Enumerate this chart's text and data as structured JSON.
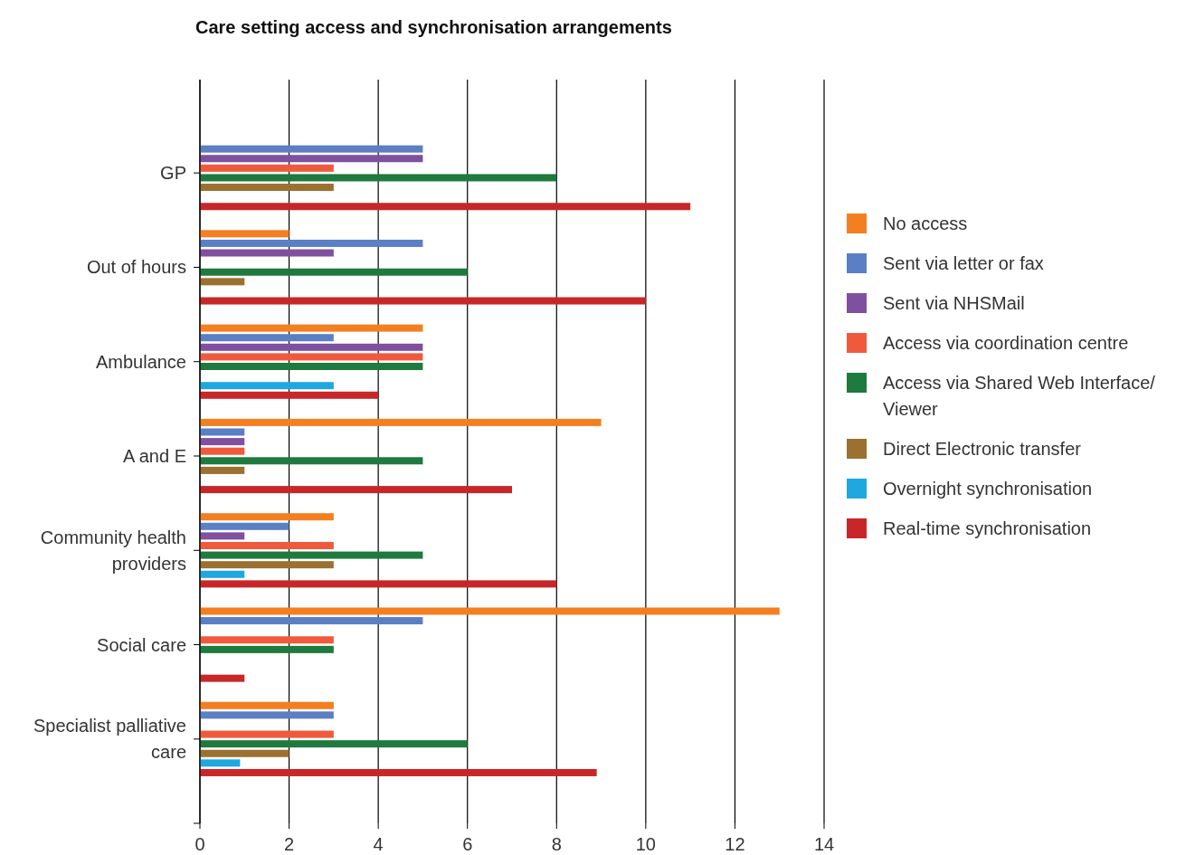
{
  "chart_data": {
    "type": "bar",
    "orientation": "horizontal",
    "title": "Care setting access and synchronisation arrangements",
    "categories": [
      "GP",
      "Out of hours",
      "Ambulance",
      "A and E",
      "Community health providers",
      "Social care",
      "Specialist palliative care"
    ],
    "series": [
      {
        "name": "No access",
        "color": "#f47f20",
        "values": [
          null,
          2,
          5,
          9,
          3,
          13,
          3
        ]
      },
      {
        "name": "Sent via letter or fax",
        "color": "#5b7fc4",
        "values": [
          5,
          5,
          3,
          1,
          2,
          5,
          3
        ]
      },
      {
        "name": "Sent via NHSMail",
        "color": "#8050a0",
        "values": [
          5,
          3,
          5,
          1,
          1,
          null,
          null
        ]
      },
      {
        "name": "Access via coordination centre",
        "color": "#f05a3c",
        "values": [
          3,
          null,
          5,
          1,
          3,
          3,
          3
        ]
      },
      {
        "name": "Access via Shared Web Interface/ Viewer",
        "color": "#1e7a3e",
        "values": [
          8,
          6,
          5,
          5,
          5,
          3,
          6
        ]
      },
      {
        "name": "Direct Electronic transfer",
        "color": "#9c7030",
        "values": [
          3,
          1,
          null,
          1,
          3,
          null,
          2
        ]
      },
      {
        "name": "Overnight synchronisation",
        "color": "#1ea8df",
        "values": [
          null,
          null,
          3,
          null,
          1,
          null,
          0.9
        ]
      },
      {
        "name": "Real-time synchronisation",
        "color": "#c8272a",
        "values": [
          11,
          10,
          4,
          7,
          8,
          1,
          8.9
        ]
      }
    ],
    "xlim": [
      0,
      14
    ],
    "xticks": [
      0,
      2,
      4,
      6,
      8,
      10,
      12,
      14
    ],
    "grid": "x",
    "legend": "right"
  }
}
